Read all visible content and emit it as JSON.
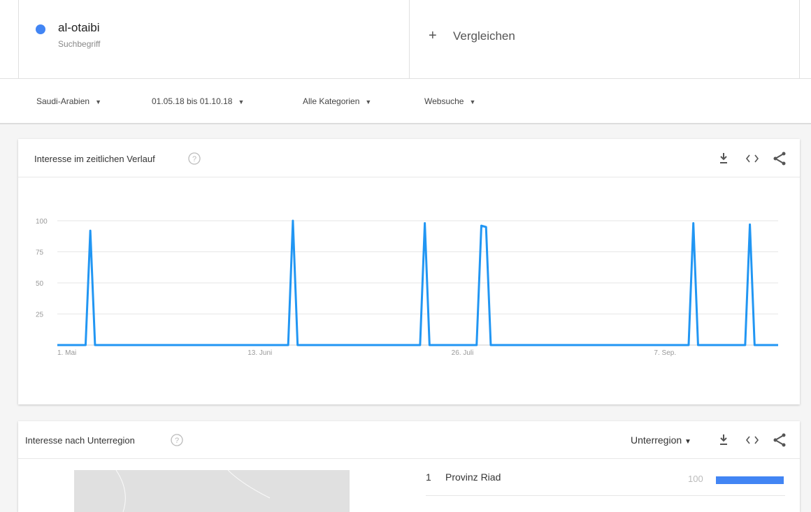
{
  "search_term": {
    "name": "al-otaibi",
    "type_label": "Suchbegriff"
  },
  "compare": {
    "plus": "+",
    "label": "Vergleichen"
  },
  "filters": [
    "Saudi-Arabien",
    "01.05.18 bis 01.10.18",
    "Alle Kategorien",
    "Websuche"
  ],
  "chart_data": {
    "type": "line",
    "title": "Interesse im zeitlichen Verlauf",
    "categories": [
      "1. Mai",
      null,
      null,
      null,
      null,
      null,
      null,
      null,
      null,
      null,
      null,
      null,
      null,
      null,
      null,
      null,
      null,
      null,
      null,
      null,
      null,
      null,
      null,
      null,
      null,
      null,
      null,
      null,
      null,
      null,
      null,
      null,
      null,
      null,
      null,
      null,
      null,
      null,
      null,
      null,
      null,
      null,
      null,
      "13. Juni",
      null,
      null,
      null,
      null,
      null,
      null,
      null,
      null,
      null,
      null,
      null,
      null,
      null,
      null,
      null,
      null,
      null,
      null,
      null,
      null,
      null,
      null,
      null,
      null,
      null,
      null,
      null,
      null,
      null,
      null,
      null,
      null,
      null,
      null,
      null,
      null,
      null,
      null,
      null,
      null,
      null,
      null,
      "26. Juli",
      null,
      null,
      null,
      null,
      null,
      null,
      null,
      null,
      null,
      null,
      null,
      null,
      null,
      null,
      null,
      null,
      null,
      null,
      null,
      null,
      null,
      null,
      null,
      null,
      null,
      null,
      null,
      null,
      null,
      null,
      null,
      null,
      null,
      null,
      null,
      null,
      null,
      null,
      null,
      null,
      null,
      null,
      "7. Sep.",
      null,
      null,
      null,
      null,
      null,
      null,
      null,
      null,
      null,
      null,
      null,
      null,
      null,
      null,
      null,
      null,
      null,
      null,
      null,
      null,
      null,
      null,
      null,
      null
    ],
    "series": [
      {
        "name": "al-otaibi",
        "color": "#2196f3",
        "values": [
          0,
          0,
          0,
          0,
          0,
          0,
          0,
          92,
          0,
          0,
          0,
          0,
          0,
          0,
          0,
          0,
          0,
          0,
          0,
          0,
          0,
          0,
          0,
          0,
          0,
          0,
          0,
          0,
          0,
          0,
          0,
          0,
          0,
          0,
          0,
          0,
          0,
          0,
          0,
          0,
          0,
          0,
          0,
          0,
          0,
          0,
          0,
          0,
          0,
          0,
          100,
          0,
          0,
          0,
          0,
          0,
          0,
          0,
          0,
          0,
          0,
          0,
          0,
          0,
          0,
          0,
          0,
          0,
          0,
          0,
          0,
          0,
          0,
          0,
          0,
          0,
          0,
          0,
          98,
          0,
          0,
          0,
          0,
          0,
          0,
          0,
          0,
          0,
          0,
          0,
          96,
          95,
          0,
          0,
          0,
          0,
          0,
          0,
          0,
          0,
          0,
          0,
          0,
          0,
          0,
          0,
          0,
          0,
          0,
          0,
          0,
          0,
          0,
          0,
          0,
          0,
          0,
          0,
          0,
          0,
          0,
          0,
          0,
          0,
          0,
          0,
          0,
          0,
          0,
          0,
          0,
          0,
          0,
          0,
          0,
          98,
          0,
          0,
          0,
          0,
          0,
          0,
          0,
          0,
          0,
          0,
          0,
          97,
          0,
          0,
          0,
          0,
          0,
          0
        ]
      }
    ],
    "ylim": [
      0,
      100
    ],
    "yticks": [
      25,
      50,
      75,
      100
    ],
    "grid": true
  },
  "region_panel": {
    "title": "Interesse nach Unterregion",
    "selector": "Unterregion",
    "rows": [
      {
        "rank": 1,
        "name": "Provinz Riad",
        "value": 100,
        "color": "#4285f4"
      }
    ]
  }
}
